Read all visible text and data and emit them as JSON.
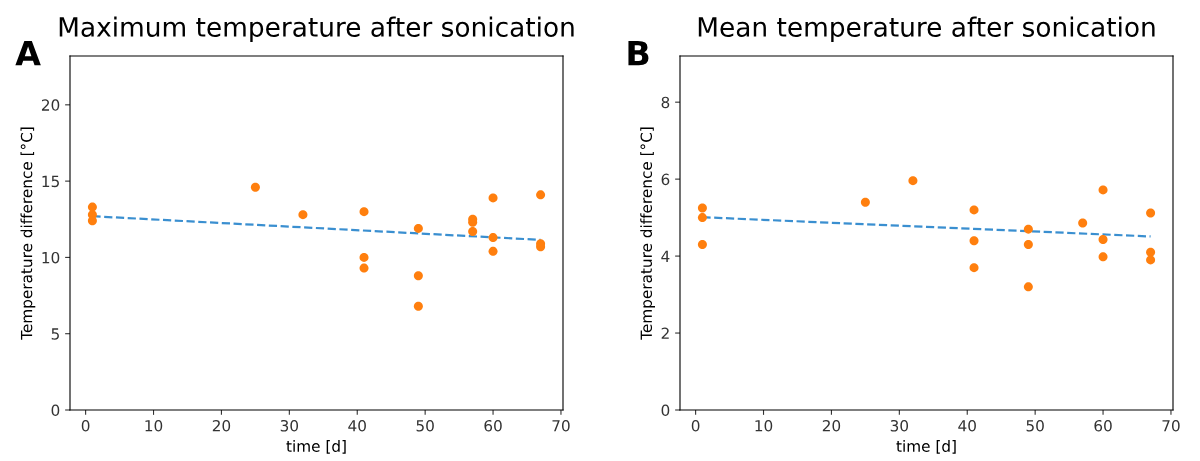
{
  "chart_data": [
    {
      "type": "scatter",
      "title": "Maximum temperature after sonication",
      "xlabel": "time [d]",
      "ylabel": "Temperature difference [°C]",
      "annotations": [
        "A"
      ],
      "xlim": [
        -2.3,
        70.3
      ],
      "xticks": [
        0,
        10,
        20,
        30,
        40,
        50,
        60,
        70
      ],
      "ylim": [
        0,
        23.2
      ],
      "yticks": [
        0,
        5,
        10,
        15,
        20
      ],
      "series": [
        {
          "marker": "circle",
          "color": "#ff7f0e",
          "x": [
            1,
            1,
            1,
            25,
            32,
            41,
            41,
            41,
            49,
            49,
            49,
            57,
            57,
            57,
            60,
            60,
            60,
            67,
            67,
            67
          ],
          "values": [
            13.3,
            12.8,
            12.4,
            14.6,
            12.8,
            13.0,
            10.0,
            9.3,
            11.9,
            8.8,
            6.8,
            12.5,
            12.3,
            11.7,
            13.9,
            11.3,
            10.4,
            14.1,
            10.9,
            10.7
          ]
        },
        {
          "type": "line",
          "color": "#3a8fd0",
          "line_style": "dashed",
          "x": [
            1,
            67
          ],
          "values": [
            12.7,
            11.15
          ]
        }
      ]
    },
    {
      "type": "scatter",
      "title": "Mean temperature after sonication",
      "xlabel": "time [d]",
      "ylabel": "Temperature difference [°C]",
      "annotations": [
        "B"
      ],
      "xlim": [
        -2.3,
        70.3
      ],
      "xticks": [
        0,
        10,
        20,
        30,
        40,
        50,
        60,
        70
      ],
      "ylim": [
        0,
        9.2
      ],
      "yticks": [
        0,
        2,
        4,
        6,
        8
      ],
      "series": [
        {
          "marker": "circle",
          "color": "#ff7f0e",
          "x": [
            1,
            1,
            1,
            25,
            32,
            41,
            41,
            41,
            49,
            49,
            49,
            57,
            60,
            60,
            60,
            67,
            67,
            67
          ],
          "values": [
            5.25,
            5.0,
            4.3,
            5.4,
            5.96,
            5.2,
            4.4,
            3.7,
            4.7,
            4.3,
            3.2,
            4.86,
            5.72,
            4.43,
            3.98,
            5.12,
            4.1,
            3.9
          ]
        },
        {
          "type": "line",
          "color": "#3a8fd0",
          "line_style": "dashed",
          "x": [
            1,
            67
          ],
          "values": [
            5.01,
            4.51
          ]
        }
      ]
    }
  ]
}
